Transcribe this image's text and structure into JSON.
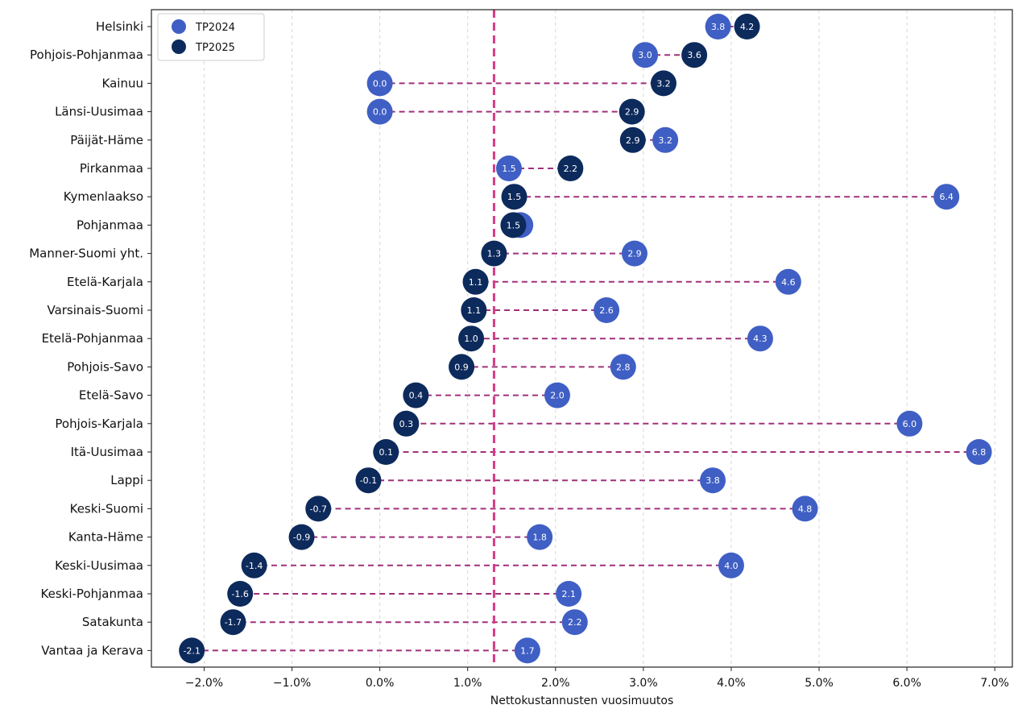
{
  "chart_data": {
    "type": "scatter",
    "subtype": "dumbbell",
    "title": "",
    "xlabel": "Nettokustannusten vuosimuutos",
    "ylabel": "",
    "xlim": [
      -2.6,
      7.2
    ],
    "x_ticks": [
      -2.0,
      -1.0,
      0.0,
      1.0,
      2.0,
      3.0,
      4.0,
      5.0,
      6.0,
      7.0
    ],
    "x_tick_labels": [
      "−2.0%",
      "−1.0%",
      "0.0%",
      "1.0%",
      "2.0%",
      "3.0%",
      "4.0%",
      "5.0%",
      "6.0%",
      "7.0%"
    ],
    "grid": "vertical dashed",
    "legend_position": "top-left",
    "reference_line": {
      "x": 1.3,
      "style": "dashed",
      "color": "#d63b86"
    },
    "categories": [
      "Helsinki",
      "Pohjois-Pohjanmaa",
      "Kainuu",
      "Länsi-Uusimaa",
      "Päijät-Häme",
      "Pirkanmaa",
      "Kymenlaakso",
      "Pohjanmaa",
      "Manner-Suomi yht.",
      "Etelä-Karjala",
      "Varsinais-Suomi",
      "Etelä-Pohjanmaa",
      "Pohjois-Savo",
      "Etelä-Savo",
      "Pohjois-Karjala",
      "Itä-Uusimaa",
      "Lappi",
      "Keski-Suomi",
      "Kanta-Häme",
      "Keski-Uusimaa",
      "Keski-Pohjanmaa",
      "Satakunta",
      "Vantaa ja Kerava"
    ],
    "series": [
      {
        "name": "TP2024",
        "color": "#3f5fc4",
        "values": [
          3.85,
          3.02,
          0.0,
          0.0,
          3.25,
          1.47,
          6.45,
          1.6,
          2.9,
          4.65,
          2.58,
          4.33,
          2.77,
          2.02,
          6.03,
          6.82,
          3.79,
          4.84,
          1.82,
          4.0,
          2.15,
          2.22,
          1.68
        ],
        "labels": [
          "3.8",
          "3.0",
          "0.0",
          "0.0",
          "3.2",
          "1.5",
          "6.4",
          "",
          "2.9",
          "4.6",
          "2.6",
          "4.3",
          "2.8",
          "2.0",
          "6.0",
          "6.8",
          "3.8",
          "4.8",
          "1.8",
          "4.0",
          "2.1",
          "2.2",
          "1.7"
        ]
      },
      {
        "name": "TP2025",
        "color": "#0d2a5c",
        "values": [
          4.18,
          3.58,
          3.23,
          2.87,
          2.88,
          2.17,
          1.53,
          1.52,
          1.3,
          1.09,
          1.07,
          1.04,
          0.93,
          0.41,
          0.3,
          0.07,
          -0.13,
          -0.7,
          -0.89,
          -1.43,
          -1.59,
          -1.67,
          -2.14
        ],
        "labels": [
          "4.2",
          "3.6",
          "3.2",
          "2.9",
          "2.9",
          "2.2",
          "1.5",
          "1.5",
          "1.3",
          "1.1",
          "1.1",
          "1.0",
          "0.9",
          "0.4",
          "0.3",
          "0.1",
          "-0.1",
          "-0.7",
          "-0.9",
          "-1.4",
          "-1.6",
          "-1.7",
          "-2.1"
        ]
      }
    ],
    "connector_color": "#a0307a"
  }
}
